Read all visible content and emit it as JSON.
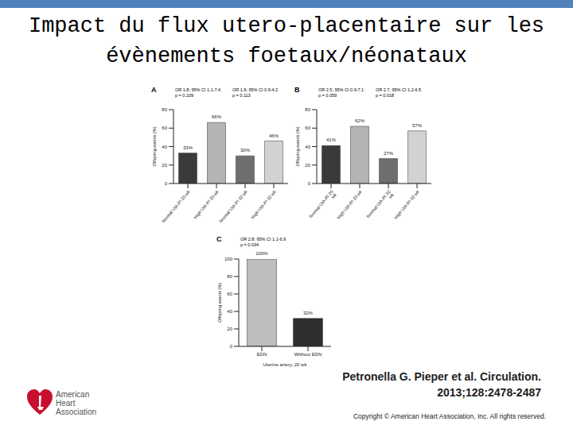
{
  "title": [
    "Impact du flux utero-placentaire sur les",
    "évènements foetaux/néonataux"
  ],
  "citation": [
    "Petronella G. Pieper et al. Circulation.",
    "2013;128:2478-2487"
  ],
  "copyright": "Copyright © American Heart Association, Inc. All rights reserved.",
  "logo": [
    "American",
    "Heart",
    "Association"
  ],
  "chart_data": [
    {
      "type": "bar",
      "panel": "A",
      "y_label": "Offspring events (%)",
      "categories": [
        "Normal UtA-PI 20 wk",
        "High UtA-PI 20 wk",
        "Normal UtA-PI 32 wk",
        "High UtA-PI 32 wk"
      ],
      "values": [
        33,
        66,
        30,
        46
      ],
      "value_labels": [
        "33%",
        "66%",
        "30%",
        "46%"
      ],
      "data_labels": true,
      "colors": [
        "#3a3a3a",
        "#b4b4b4",
        "#6e6e6e",
        "#d2d2d2"
      ],
      "ylim": [
        0,
        80
      ],
      "yticks": [
        0,
        20,
        40,
        60,
        80
      ],
      "grid": false,
      "annotations": [
        [
          "OR 1.8; 95% CI 1.1-7.4",
          "p = 0.109"
        ],
        [
          "OR 1.9; 95% CI 0.9-4.2",
          "p = 0.113"
        ]
      ]
    },
    {
      "type": "bar",
      "panel": "B",
      "y_label": "Offspring events (%)",
      "categories": [
        "Normal UtA-RI 20 wk",
        "High UtA-RI 20 wk",
        "Normal UtA-RI 32 wk",
        "High UtA-RI 32 wk"
      ],
      "values": [
        41,
        62,
        27,
        57
      ],
      "value_labels": [
        "41%",
        "62%",
        "27%",
        "57%"
      ],
      "data_labels": true,
      "colors": [
        "#3a3a3a",
        "#b4b4b4",
        "#6e6e6e",
        "#d2d2d2"
      ],
      "ylim": [
        0,
        80
      ],
      "yticks": [
        0,
        20,
        40,
        60,
        80
      ],
      "grid": false,
      "annotations": [
        [
          "OR 2.5; 95% CI 0.9-7.1",
          "p = 0.059"
        ],
        [
          "OR 2.7; 95% CI 1.2-6.5",
          "p = 0.018"
        ]
      ]
    },
    {
      "type": "bar",
      "panel": "C",
      "y_label": "Offspring events (%)",
      "x_label": "Uterine artery, 20 wk",
      "categories": [
        "EDN",
        "Without EDN"
      ],
      "values": [
        100,
        32
      ],
      "value_labels": [
        "100%",
        "32%"
      ],
      "data_labels": true,
      "colors": [
        "#bdbdbd",
        "#2e2e2e"
      ],
      "ylim": [
        0,
        100
      ],
      "yticks": [
        0,
        20,
        40,
        60,
        80,
        100
      ],
      "grid": false,
      "annotations": [
        [
          "OR 2.8; 95% CI 1.1-6.9",
          "p = 0.034"
        ]
      ]
    }
  ]
}
